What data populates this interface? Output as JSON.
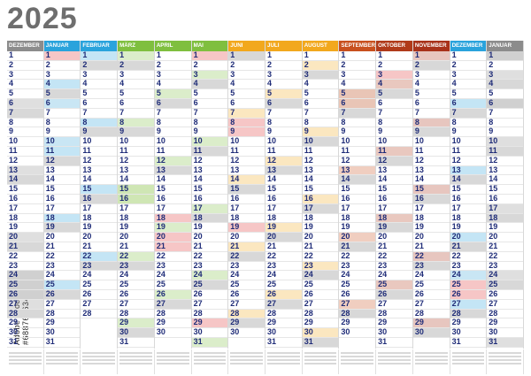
{
  "year": "2025",
  "side_id": "Adobe Stock | #688761634",
  "months": [
    {
      "name": "DEZEMBER",
      "days": 31,
      "color": "#8c8c8c"
    },
    {
      "name": "JANUAR",
      "days": 31,
      "color": "#2aa3dc"
    },
    {
      "name": "FEBRUAR",
      "days": 28,
      "color": "#2aa3dc"
    },
    {
      "name": "MÄRZ",
      "days": 31,
      "color": "#7fbf3f"
    },
    {
      "name": "APRIL",
      "days": 30,
      "color": "#7fbf3f"
    },
    {
      "name": "MAI",
      "days": 31,
      "color": "#7fbf3f"
    },
    {
      "name": "JUNI",
      "days": 30,
      "color": "#f2a81d"
    },
    {
      "name": "JULI",
      "days": 31,
      "color": "#f2a81d"
    },
    {
      "name": "AUGUST",
      "days": 31,
      "color": "#f2a81d"
    },
    {
      "name": "SEPTEMBER",
      "days": 30,
      "color": "#c8501e"
    },
    {
      "name": "OKTOBER",
      "days": 31,
      "color": "#b03a1a"
    },
    {
      "name": "NOVEMBER",
      "days": 30,
      "color": "#a8321a"
    },
    {
      "name": "DEZEMBER",
      "days": 31,
      "color": "#2aa3dc"
    },
    {
      "name": "JANUAR",
      "days": 31,
      "color": "#8c8c8c"
    }
  ],
  "first_weekday": [
    0,
    2,
    5,
    5,
    1,
    3,
    6,
    1,
    4,
    0,
    2,
    5,
    0,
    3
  ],
  "weekend_color": "#d8d8d8",
  "highlight": {
    "0": {
      "24": "#d0d0d0",
      "25": "#d0d0d0",
      "26": "#d0d0d0"
    },
    "1": {
      "1": "#f6c6c6",
      "6": "#c9e6f4",
      "10": "#c9e6f4"
    },
    "3": {
      "15": "#cfe6b4",
      "16": "#cfe6b4"
    },
    "4": {
      "18": "#f6c6c6",
      "20": "#f6c6c6",
      "21": "#f6c6c6"
    },
    "5": {
      "1": "#f6c6c6",
      "29": "#f6c6c6"
    },
    "6": {
      "8": "#f6c6c6",
      "9": "#f6c6c6",
      "19": "#f6c6c6"
    },
    "9": {
      "5": "#e9c5b6",
      "6": "#e9c5b6"
    },
    "10": {
      "3": "#f6c6c6"
    },
    "12": {
      "24": "#c9e6f4",
      "25": "#f6c6c6",
      "26": "#f6c6c6"
    },
    "13": {
      "1": "#d0d0d0",
      "6": "#d0d0d0"
    }
  }
}
